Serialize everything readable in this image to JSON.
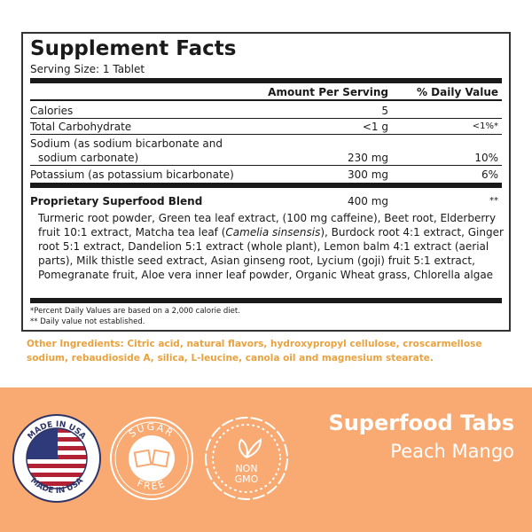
{
  "panel": {
    "title": "Supplement Facts",
    "serving_size": "Serving Size: 1 Tablet",
    "header": {
      "amount": "Amount Per Serving",
      "dv": "% Daily Value"
    },
    "rows": [
      {
        "name": "Calories",
        "amount": "5",
        "dv": ""
      },
      {
        "name": "Total Carbohydrate",
        "amount": "<1 g",
        "dv": "<1%*"
      },
      {
        "name": "Sodium (as sodium bicarbonate and",
        "name2": "sodium carbonate)",
        "amount": "230 mg",
        "dv": "10%"
      },
      {
        "name": "Potassium (as potassium bicarbonate)",
        "amount": "300 mg",
        "dv": "6%"
      }
    ],
    "blend": {
      "name": "Proprietary Superfood Blend",
      "amount": "400 mg",
      "dv": "**",
      "ingredients_a": "Turmeric root powder, Green tea leaf extract, (100 mg caffeine), Beet root, Elderberry fruit 10:1 extract, Matcha tea leaf (",
      "ingredients_italic": "Camelia sinsensis",
      "ingredients_b": "), Burdock root 4:1 extract, Ginger root 5:1 extract, Dandelion 5:1 extract (whole plant), Lemon balm 4:1 extract (aerial parts), Milk thistle seed extract, Asian ginseng root, Lycium (goji) fruit 5:1 extract, Pomegranate fruit, Aloe vera inner leaf powder, Organic Wheat grass, Chlorella algae"
    },
    "footnotes": [
      "*Percent Daily Values are based on a 2,000 calorie diet.",
      "** Daily value not established."
    ]
  },
  "other_ingredients": "Other Ingredients: Citric acid, natural flavors, hydroxypropyl cellulose, croscarmellose sodium, rebaudioside A, silica, L-leucine, canola oil and magnesium stearate.",
  "badges": {
    "usa": "MADE IN USA",
    "sugar_top": "SUGAR",
    "sugar_bottom": "FREE",
    "gmo1": "NON",
    "gmo2": "GMO"
  },
  "product": {
    "name": "Superfood Tabs",
    "flavor": "Peach Mango"
  },
  "colors": {
    "band": "#F8AA72",
    "other_ingredients": "#E9A23F",
    "text": "#1a1a1a"
  }
}
